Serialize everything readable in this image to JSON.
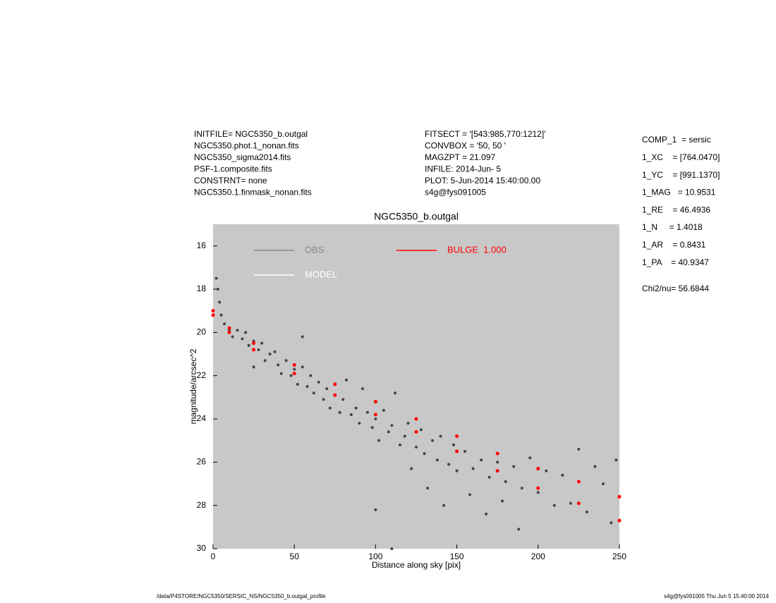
{
  "header": {
    "left": [
      "INITFILE= NGC5350_b.outgal",
      "NGC5350.phot.1_nonan.fits",
      "NGC5350_sigma2014.fits",
      "PSF-1.composite.fits",
      "CONSTRNT= none",
      "NGC5350.1.finmask_nonan.fits"
    ],
    "middle": [
      "FITSECT = '[543:985,770:1212]'",
      "CONVBOX = '50, 50  '",
      "MAGZPT  =              21.097",
      "INFILE: 2014-Jun- 5",
      "PLOT:  5-Jun-2014 15:40:00.00",
      "s4g@fys091005"
    ],
    "right": [
      "COMP_1  = sersic",
      "1_XC    = [764.0470]",
      "1_YC    = [991.1370]",
      "1_MAG   = 10.9531",
      "1_RE    = 46.4936",
      "1_N     = 1.4018",
      "1_AR    = 0.8431",
      "1_PA    = 40.9347"
    ],
    "chi": "Chi2/nu=      56.6844"
  },
  "footer": {
    "left": "/data/P4STORE/NGC5350/SERSIC_NS/NGC5350_b.outgal_profile",
    "right": "s4g@fys091005  Thu Jun  5 15:40:00 2014"
  },
  "chart_data": {
    "type": "scatter",
    "title": "NGC5350_b.outgal",
    "x_label": "Distance along sky [pix]",
    "y_label": "magnitude/arcsec^2",
    "xlim": [
      0,
      250
    ],
    "xticks": [
      0,
      50,
      100,
      150,
      200,
      250
    ],
    "ylim": [
      15,
      30
    ],
    "yticks": [
      16,
      18,
      20,
      22,
      24,
      26,
      28,
      30
    ],
    "y_inverted": true,
    "background": "#c8c8c8",
    "series": [
      {
        "name": "OBS",
        "color": "#444444",
        "legend_color": "#888888",
        "x": [
          2,
          3,
          4,
          5,
          7,
          10,
          12,
          15,
          18,
          20,
          22,
          25,
          25,
          28,
          30,
          32,
          35,
          38,
          40,
          42,
          45,
          48,
          50,
          52,
          55,
          55,
          58,
          60,
          62,
          65,
          68,
          70,
          72,
          75,
          78,
          80,
          82,
          85,
          88,
          90,
          92,
          95,
          98,
          100,
          102,
          105,
          108,
          110,
          112,
          115,
          118,
          120,
          122,
          125,
          128,
          130,
          132,
          135,
          138,
          140,
          142,
          145,
          148,
          150,
          155,
          158,
          160,
          165,
          168,
          170,
          175,
          178,
          180,
          185,
          188,
          190,
          195,
          200,
          205,
          210,
          215,
          220,
          225,
          230,
          235,
          240,
          245,
          248,
          110,
          100
        ],
        "y": [
          17.5,
          18,
          18.6,
          19.2,
          19.6,
          19.9,
          20.2,
          19.9,
          20.3,
          20.0,
          20.6,
          20.4,
          21.6,
          20.8,
          20.5,
          21.3,
          21.0,
          20.9,
          21.5,
          21.9,
          21.3,
          22.0,
          21.7,
          22.4,
          21.6,
          20.2,
          22.5,
          22.0,
          22.8,
          22.3,
          23.1,
          22.6,
          23.5,
          22.9,
          23.7,
          23.1,
          22.2,
          23.8,
          23.5,
          24.2,
          22.6,
          23.7,
          24.4,
          24.0,
          25.0,
          23.6,
          24.6,
          24.3,
          22.8,
          25.2,
          24.8,
          24.2,
          26.3,
          25.3,
          24.5,
          25.6,
          27.2,
          25.0,
          25.9,
          24.8,
          28.0,
          26.1,
          25.2,
          26.4,
          25.5,
          27.5,
          26.3,
          25.9,
          28.4,
          26.7,
          26.0,
          27.8,
          26.9,
          26.2,
          29.1,
          27.2,
          25.8,
          27.4,
          26.4,
          28.0,
          26.6,
          27.9,
          25.4,
          28.3,
          26.2,
          27.0,
          28.8,
          25.9,
          30.0,
          28.2
        ]
      },
      {
        "name": "MODEL",
        "color": "#ffffff",
        "x": [],
        "y": []
      },
      {
        "name": "BULGE  1.000",
        "color": "#ff0000",
        "x": [
          0,
          10,
          25,
          50,
          75,
          100,
          125,
          150,
          175,
          200,
          225,
          250,
          0,
          10,
          25,
          50,
          75,
          100,
          125,
          150,
          175,
          200,
          225,
          250
        ],
        "y": [
          19.0,
          19.8,
          20.5,
          21.5,
          22.4,
          23.2,
          24.0,
          24.8,
          25.6,
          26.3,
          26.9,
          27.6,
          19.2,
          20.0,
          20.8,
          21.9,
          22.9,
          23.8,
          24.6,
          25.5,
          26.4,
          27.2,
          27.9,
          28.7
        ]
      }
    ]
  }
}
